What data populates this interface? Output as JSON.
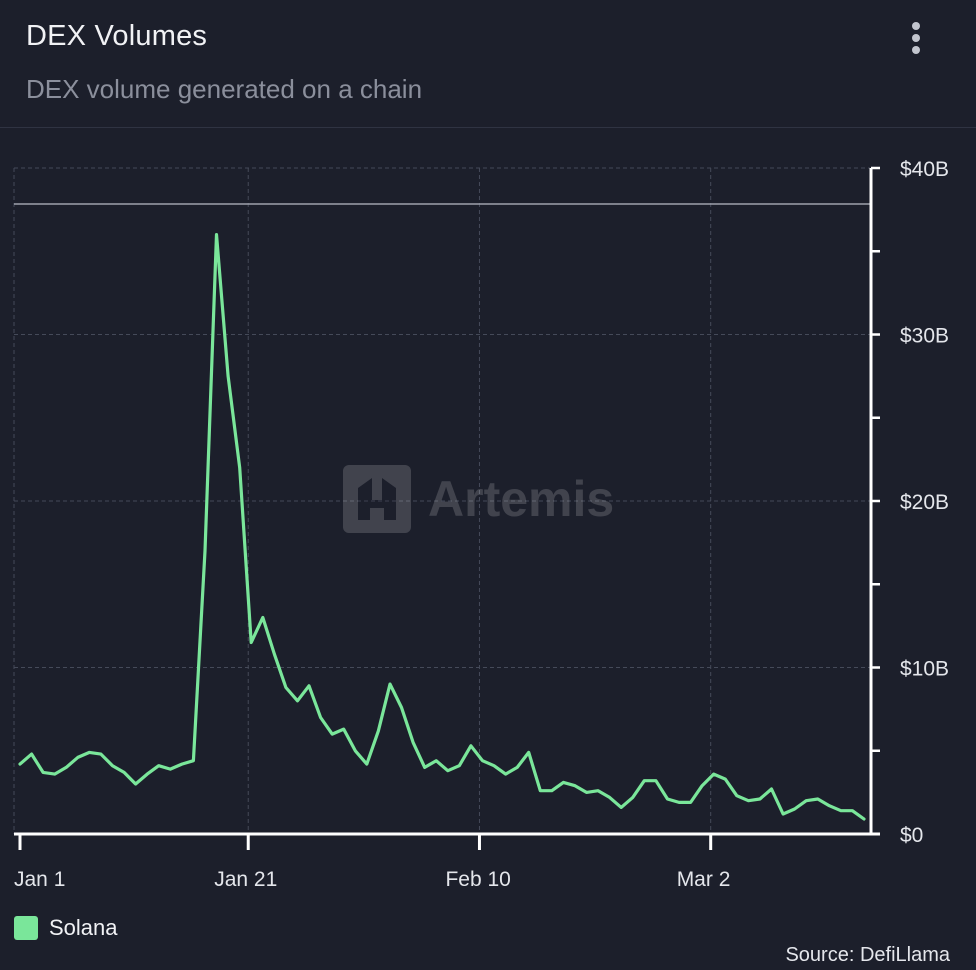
{
  "header": {
    "title": "DEX Volumes",
    "subtitle": "DEX volume generated on a chain"
  },
  "menu": {
    "icon": "more-vertical-icon"
  },
  "footer": {
    "source": "Source: DefiLlama"
  },
  "chart_data": {
    "type": "line",
    "title": "DEX Volumes",
    "subtitle": "DEX volume generated on a chain",
    "xlabel": "",
    "ylabel": "",
    "x_ticks": [
      "Jan 1",
      "Jan 21",
      "Feb 10",
      "Mar 2"
    ],
    "y_ticks": [
      "$0",
      "$10B",
      "$20B",
      "$30B",
      "$40B"
    ],
    "ylim": [
      0,
      40
    ],
    "y_unit": "B USD",
    "grid": true,
    "watermark": "Artemis",
    "legend_position": "bottom-left",
    "series": [
      {
        "name": "Solana",
        "color": "#7ae69a",
        "x": [
          "Jan 1",
          "Jan 2",
          "Jan 3",
          "Jan 4",
          "Jan 5",
          "Jan 6",
          "Jan 7",
          "Jan 8",
          "Jan 9",
          "Jan 10",
          "Jan 11",
          "Jan 12",
          "Jan 13",
          "Jan 14",
          "Jan 15",
          "Jan 16",
          "Jan 17",
          "Jan 18",
          "Jan 19",
          "Jan 20",
          "Jan 21",
          "Jan 22",
          "Jan 23",
          "Jan 24",
          "Jan 25",
          "Jan 26",
          "Jan 27",
          "Jan 28",
          "Jan 29",
          "Jan 30",
          "Jan 31",
          "Feb 1",
          "Feb 2",
          "Feb 3",
          "Feb 4",
          "Feb 5",
          "Feb 6",
          "Feb 7",
          "Feb 8",
          "Feb 9",
          "Feb 10",
          "Feb 11",
          "Feb 12",
          "Feb 13",
          "Feb 14",
          "Feb 15",
          "Feb 16",
          "Feb 17",
          "Feb 18",
          "Feb 19",
          "Feb 20",
          "Feb 21",
          "Feb 22",
          "Feb 23",
          "Feb 24",
          "Feb 25",
          "Feb 26",
          "Feb 27",
          "Feb 28",
          "Mar 1",
          "Mar 2",
          "Mar 3",
          "Mar 4",
          "Mar 5",
          "Mar 6",
          "Mar 7",
          "Mar 8",
          "Mar 9",
          "Mar 10",
          "Mar 11",
          "Mar 12",
          "Mar 13",
          "Mar 14",
          "Mar 15"
        ],
        "values": [
          4.2,
          4.8,
          3.7,
          3.6,
          4.0,
          4.6,
          4.9,
          4.8,
          4.1,
          3.7,
          3.0,
          3.6,
          4.1,
          3.9,
          4.2,
          4.4,
          17.0,
          36.0,
          27.5,
          22.0,
          11.5,
          13.0,
          10.8,
          8.8,
          8.0,
          8.9,
          7.0,
          6.0,
          6.3,
          5.0,
          4.2,
          6.2,
          9.0,
          7.6,
          5.5,
          4.0,
          4.4,
          3.8,
          4.1,
          5.3,
          4.4,
          4.1,
          3.6,
          4.0,
          4.9,
          2.6,
          2.6,
          3.1,
          2.9,
          2.5,
          2.6,
          2.2,
          1.6,
          2.2,
          3.2,
          3.2,
          2.1,
          1.9,
          1.9,
          2.9,
          3.6,
          3.3,
          2.3,
          2.0,
          2.1,
          2.7,
          1.2,
          1.5,
          2.0,
          2.1,
          1.7,
          1.4,
          1.4,
          0.9
        ]
      }
    ]
  }
}
